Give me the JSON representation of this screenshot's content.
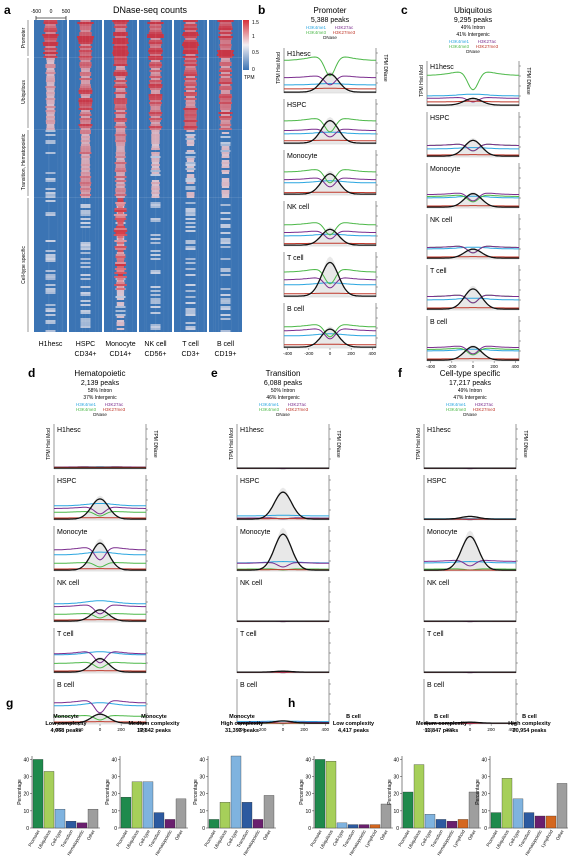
{
  "colors": {
    "h3k4me1": "#2aa6e0",
    "h3k4me3": "#4cb848",
    "h3k27ac": "#7b2d8e",
    "h3k27me3": "#c0392b",
    "dnase": "#111111",
    "heat_low": "#3b74b4",
    "heat_high": "#d7303a",
    "bar_promoter": "#1f8a4c",
    "bar_ubiquitous": "#a6cf5a",
    "bar_celltype": "#7fb3df",
    "bar_transition": "#2c5aa0",
    "bar_hematopoietic": "#6a1f6e",
    "bar_lymphoid": "#d4671f",
    "bar_other": "#9e9e9e"
  },
  "panel_a": {
    "letter": "a",
    "title": "DNase-seq counts",
    "scale_ticks": [
      "-500",
      "0",
      "500"
    ],
    "row_groups": [
      "Promoter",
      "Ubiquitous",
      "Transition, Hematopoietic",
      "Cell-type specific"
    ],
    "columns": [
      {
        "line1": "H1hesc",
        "line2": ""
      },
      {
        "line1": "HSPC",
        "line2": "CD34+"
      },
      {
        "line1": "Monocyte",
        "line2": "CD14+"
      },
      {
        "line1": "NK cell",
        "line2": "CD56+"
      },
      {
        "line1": "T cell",
        "line2": "CD3+"
      },
      {
        "line1": "B cell",
        "line2": "CD19+"
      }
    ],
    "colorbar_ticks": [
      "1.5",
      "1",
      "0.5",
      "0"
    ],
    "colorbar_unit": "TPM"
  },
  "profile_common": {
    "cells": [
      "H1hesc",
      "HSPC",
      "Monocyte",
      "NK cell",
      "T cell",
      "B cell"
    ],
    "x_ticks": [
      "-400",
      "-200",
      "0",
      "200",
      "400"
    ],
    "left_axis_label": "TPM Hist Mod",
    "right_axis_label": "TPM DNase",
    "legend_row1_left": "H3K4me1",
    "legend_row1_right": "H3K27ac",
    "legend_row2_left": "H3K4me3",
    "legend_row2_right": "H3K27me3",
    "legend_row3": "DNase"
  },
  "profile_panels": [
    {
      "letter": "b",
      "title": "Promoter",
      "peaks": "5,388 peaks",
      "info1": "",
      "info2": ""
    },
    {
      "letter": "c",
      "title": "Ubiquitous",
      "peaks": "9,295 peaks",
      "info1": "49% Intron",
      "info2": "41% Intergenic"
    },
    {
      "letter": "d",
      "title": "Hematopoietic",
      "peaks": "2,139 peaks",
      "info1": "58% Intron",
      "info2": "37% Intergenic"
    },
    {
      "letter": "e",
      "title": "Transition",
      "peaks": "6,088 peaks",
      "info1": "50% Intron",
      "info2": "46% Intergenic"
    },
    {
      "letter": "f",
      "title": "Cell-type specific",
      "peaks": "17,217 peaks",
      "info1": "49% Intron",
      "info2": "47% Intergenic"
    }
  ],
  "bar_panels": [
    {
      "letter": "g",
      "charts": [
        {
          "title1": "Monocyte",
          "title2": "Low complexity",
          "title3": "4,068 peaks"
        },
        {
          "title1": "Monocyte",
          "title2": "Medium complexity",
          "title3": "12,842 peaks"
        },
        {
          "title1": "Monocyte",
          "title2": "High complexity",
          "title3": "31,393 peaks"
        }
      ]
    },
    {
      "letter": "h",
      "charts": [
        {
          "title1": "B cell",
          "title2": "Low complexity",
          "title3": "4,417 peaks"
        },
        {
          "title1": "B cell",
          "title2": "Medium complexity",
          "title3": "11,847 peaks"
        },
        {
          "title1": "B cell",
          "title2": "High complexity",
          "title3": "20,954 peaks"
        }
      ]
    }
  ],
  "chart_data": [
    {
      "type": "bar",
      "title": "Monocyte Low complexity 4,068 peaks",
      "ylabel": "Percentage",
      "ylim": [
        0,
        42
      ],
      "categories": [
        "Promoter",
        "Ubiquitous",
        "Cell-type",
        "Transition",
        "Hematopoietic",
        "Other"
      ],
      "values": [
        40,
        33,
        11,
        4,
        3,
        11
      ]
    },
    {
      "type": "bar",
      "title": "Monocyte Medium complexity 12,842 peaks",
      "ylabel": "Percentage",
      "ylim": [
        0,
        42
      ],
      "categories": [
        "Promoter",
        "Ubiquitous",
        "Cell-type",
        "Transition",
        "Hematopoietic",
        "Other"
      ],
      "values": [
        18,
        27,
        27,
        9,
        5,
        17
      ]
    },
    {
      "type": "bar",
      "title": "Monocyte High complexity 31,393 peaks",
      "ylabel": "Percentage",
      "ylim": [
        0,
        42
      ],
      "categories": [
        "Promoter",
        "Ubiquitous",
        "Cell-type",
        "Transition",
        "Hematopoietic",
        "Other"
      ],
      "values": [
        5,
        15,
        42,
        15,
        5,
        19
      ]
    },
    {
      "type": "bar",
      "title": "B cell Low complexity 4,417 peaks",
      "ylabel": "Percentage",
      "ylim": [
        0,
        42
      ],
      "categories": [
        "Promoter",
        "Ubiquitous",
        "Cell-type",
        "Transition",
        "Hematopoietic",
        "Lymphoid",
        "Other"
      ],
      "values": [
        40,
        39,
        3,
        2,
        2,
        2,
        14
      ]
    },
    {
      "type": "bar",
      "title": "B cell Medium complexity 11,847 peaks",
      "ylabel": "Percentage",
      "ylim": [
        0,
        42
      ],
      "categories": [
        "Promoter",
        "Ubiquitous",
        "Cell-type",
        "Transition",
        "Hematopoietic",
        "Lymphoid",
        "Other"
      ],
      "values": [
        21,
        37,
        8,
        5,
        4,
        5,
        21
      ]
    },
    {
      "type": "bar",
      "title": "B cell High complexity 20,954 peaks",
      "ylabel": "Percentage",
      "ylim": [
        0,
        42
      ],
      "categories": [
        "Promoter",
        "Ubiquitous",
        "Cell-type",
        "Transition",
        "Hematopoietic",
        "Lymphoid",
        "Other"
      ],
      "values": [
        9,
        29,
        17,
        9,
        7,
        7,
        26
      ]
    }
  ]
}
